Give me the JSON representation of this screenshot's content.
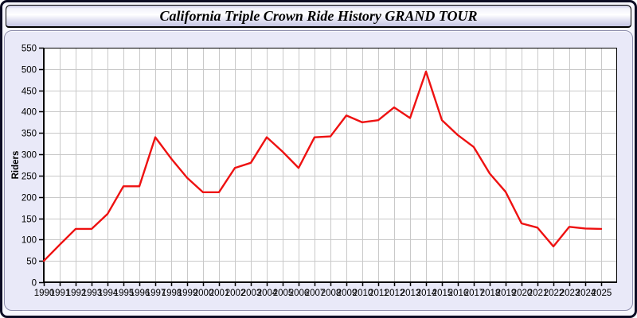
{
  "window": {
    "title": "California Triple Crown Ride History GRAND TOUR"
  },
  "colors": {
    "line": "#ee1111",
    "panel_bg": "#e9e9f8",
    "panel_border": "#8e8eac",
    "plot_bg": "#ffffff",
    "grid": "#c9c9c9",
    "axis": "#000000",
    "label": "#000000",
    "window_border": "#0d0d24"
  },
  "chart_data": {
    "type": "line",
    "title": "California Triple Crown Ride History GRAND TOUR",
    "xlabel": "",
    "ylabel": "Riders",
    "ylim": [
      0,
      550
    ],
    "ytick_step": 50,
    "grid": true,
    "legend_position": "none",
    "x": [
      1990,
      1991,
      1992,
      1993,
      1994,
      1995,
      1996,
      1997,
      1998,
      1999,
      2000,
      2001,
      2002,
      2003,
      2004,
      2005,
      2006,
      2007,
      2008,
      2009,
      2010,
      2011,
      2012,
      2013,
      2014,
      2015,
      2016,
      2017,
      2018,
      2019,
      2020,
      2021,
      2022,
      2023,
      2024,
      2025
    ],
    "series": [
      {
        "name": "Riders",
        "values": [
          50,
          88,
          125,
          125,
          160,
          225,
          225,
          340,
          290,
          245,
          211,
          211,
          268,
          280,
          340,
          306,
          268,
          340,
          342,
          391,
          375,
          380,
          410,
          385,
          494,
          380,
          345,
          317,
          255,
          212,
          138,
          128,
          84,
          130,
          126,
          125
        ]
      }
    ]
  }
}
